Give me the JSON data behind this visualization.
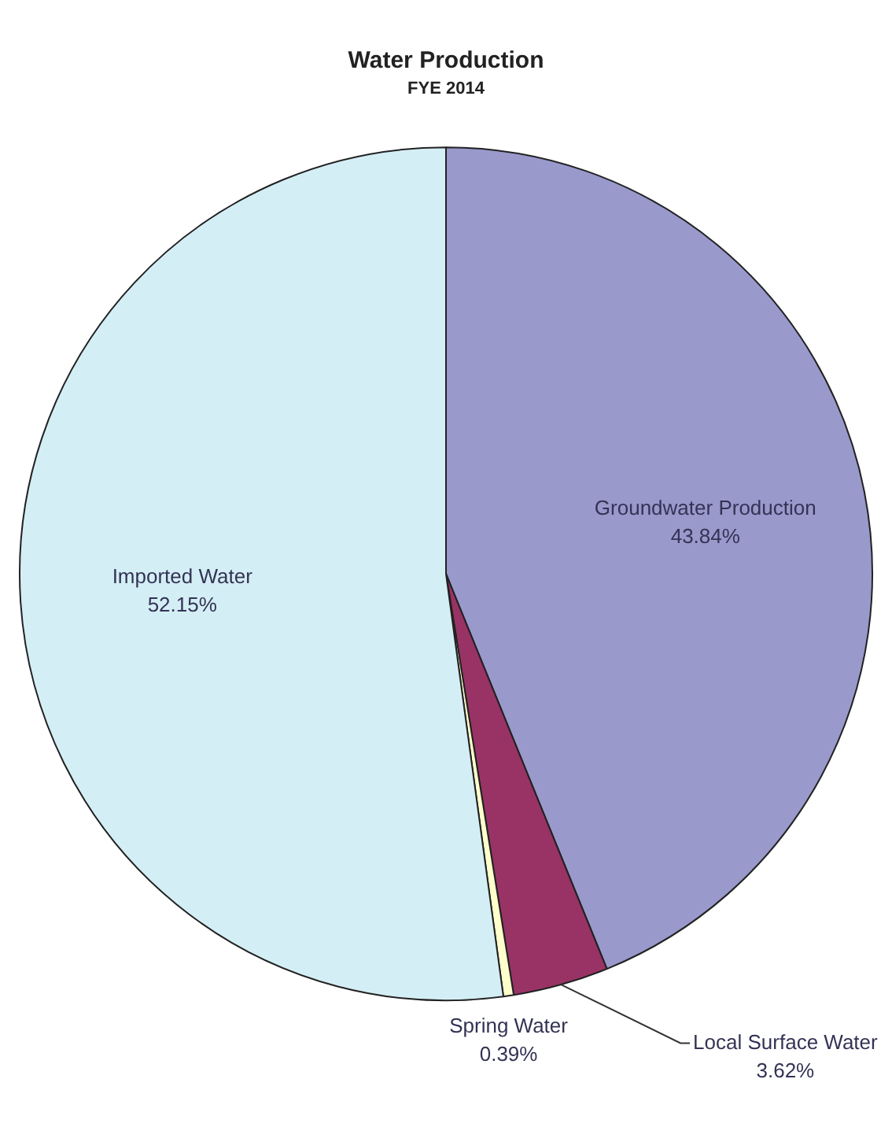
{
  "chart_data": {
    "type": "pie",
    "title": "Water Production",
    "subtitle": "FYE 2014",
    "categories": [
      "Groundwater Production",
      "Local Surface Water",
      "Spring Water",
      "Imported Water"
    ],
    "values": [
      43.84,
      3.62,
      0.39,
      52.15
    ],
    "value_labels": [
      "43.84%",
      "3.62%",
      "0.39%",
      "52.15%"
    ],
    "colors": [
      "#9999cc",
      "#993366",
      "#ffffcc",
      "#d4eef5"
    ],
    "legend": false
  }
}
